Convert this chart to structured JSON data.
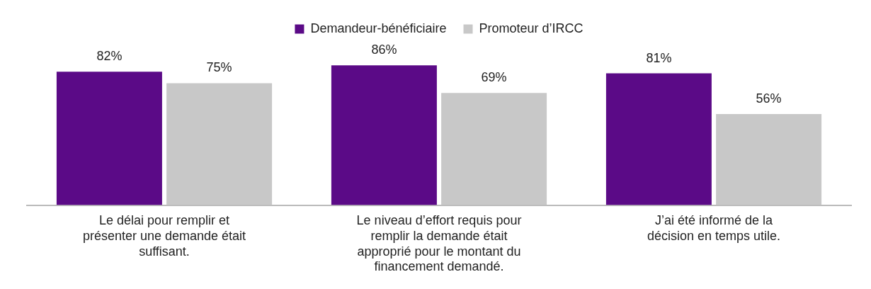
{
  "chart_data": {
    "type": "bar",
    "categories": [
      "Le délai pour remplir et présenter une demande était suffisant.",
      "Le niveau d’effort requis pour remplir la demande était approprié pour le montant du financement demandé.",
      "J’ai été informé de la décision en temps utile."
    ],
    "series": [
      {
        "name": "Demandeur-bénéficiaire",
        "color": "#5b0a87",
        "values": [
          82,
          86,
          81
        ],
        "value_labels": [
          "82%",
          "86%",
          "81%"
        ]
      },
      {
        "name": "Promoteur d’IRCC",
        "color": "#c8c8c8",
        "values": [
          75,
          69,
          56
        ],
        "value_labels": [
          "75%",
          "69%",
          "56%"
        ]
      }
    ],
    "legend": "top",
    "grid": false
  }
}
